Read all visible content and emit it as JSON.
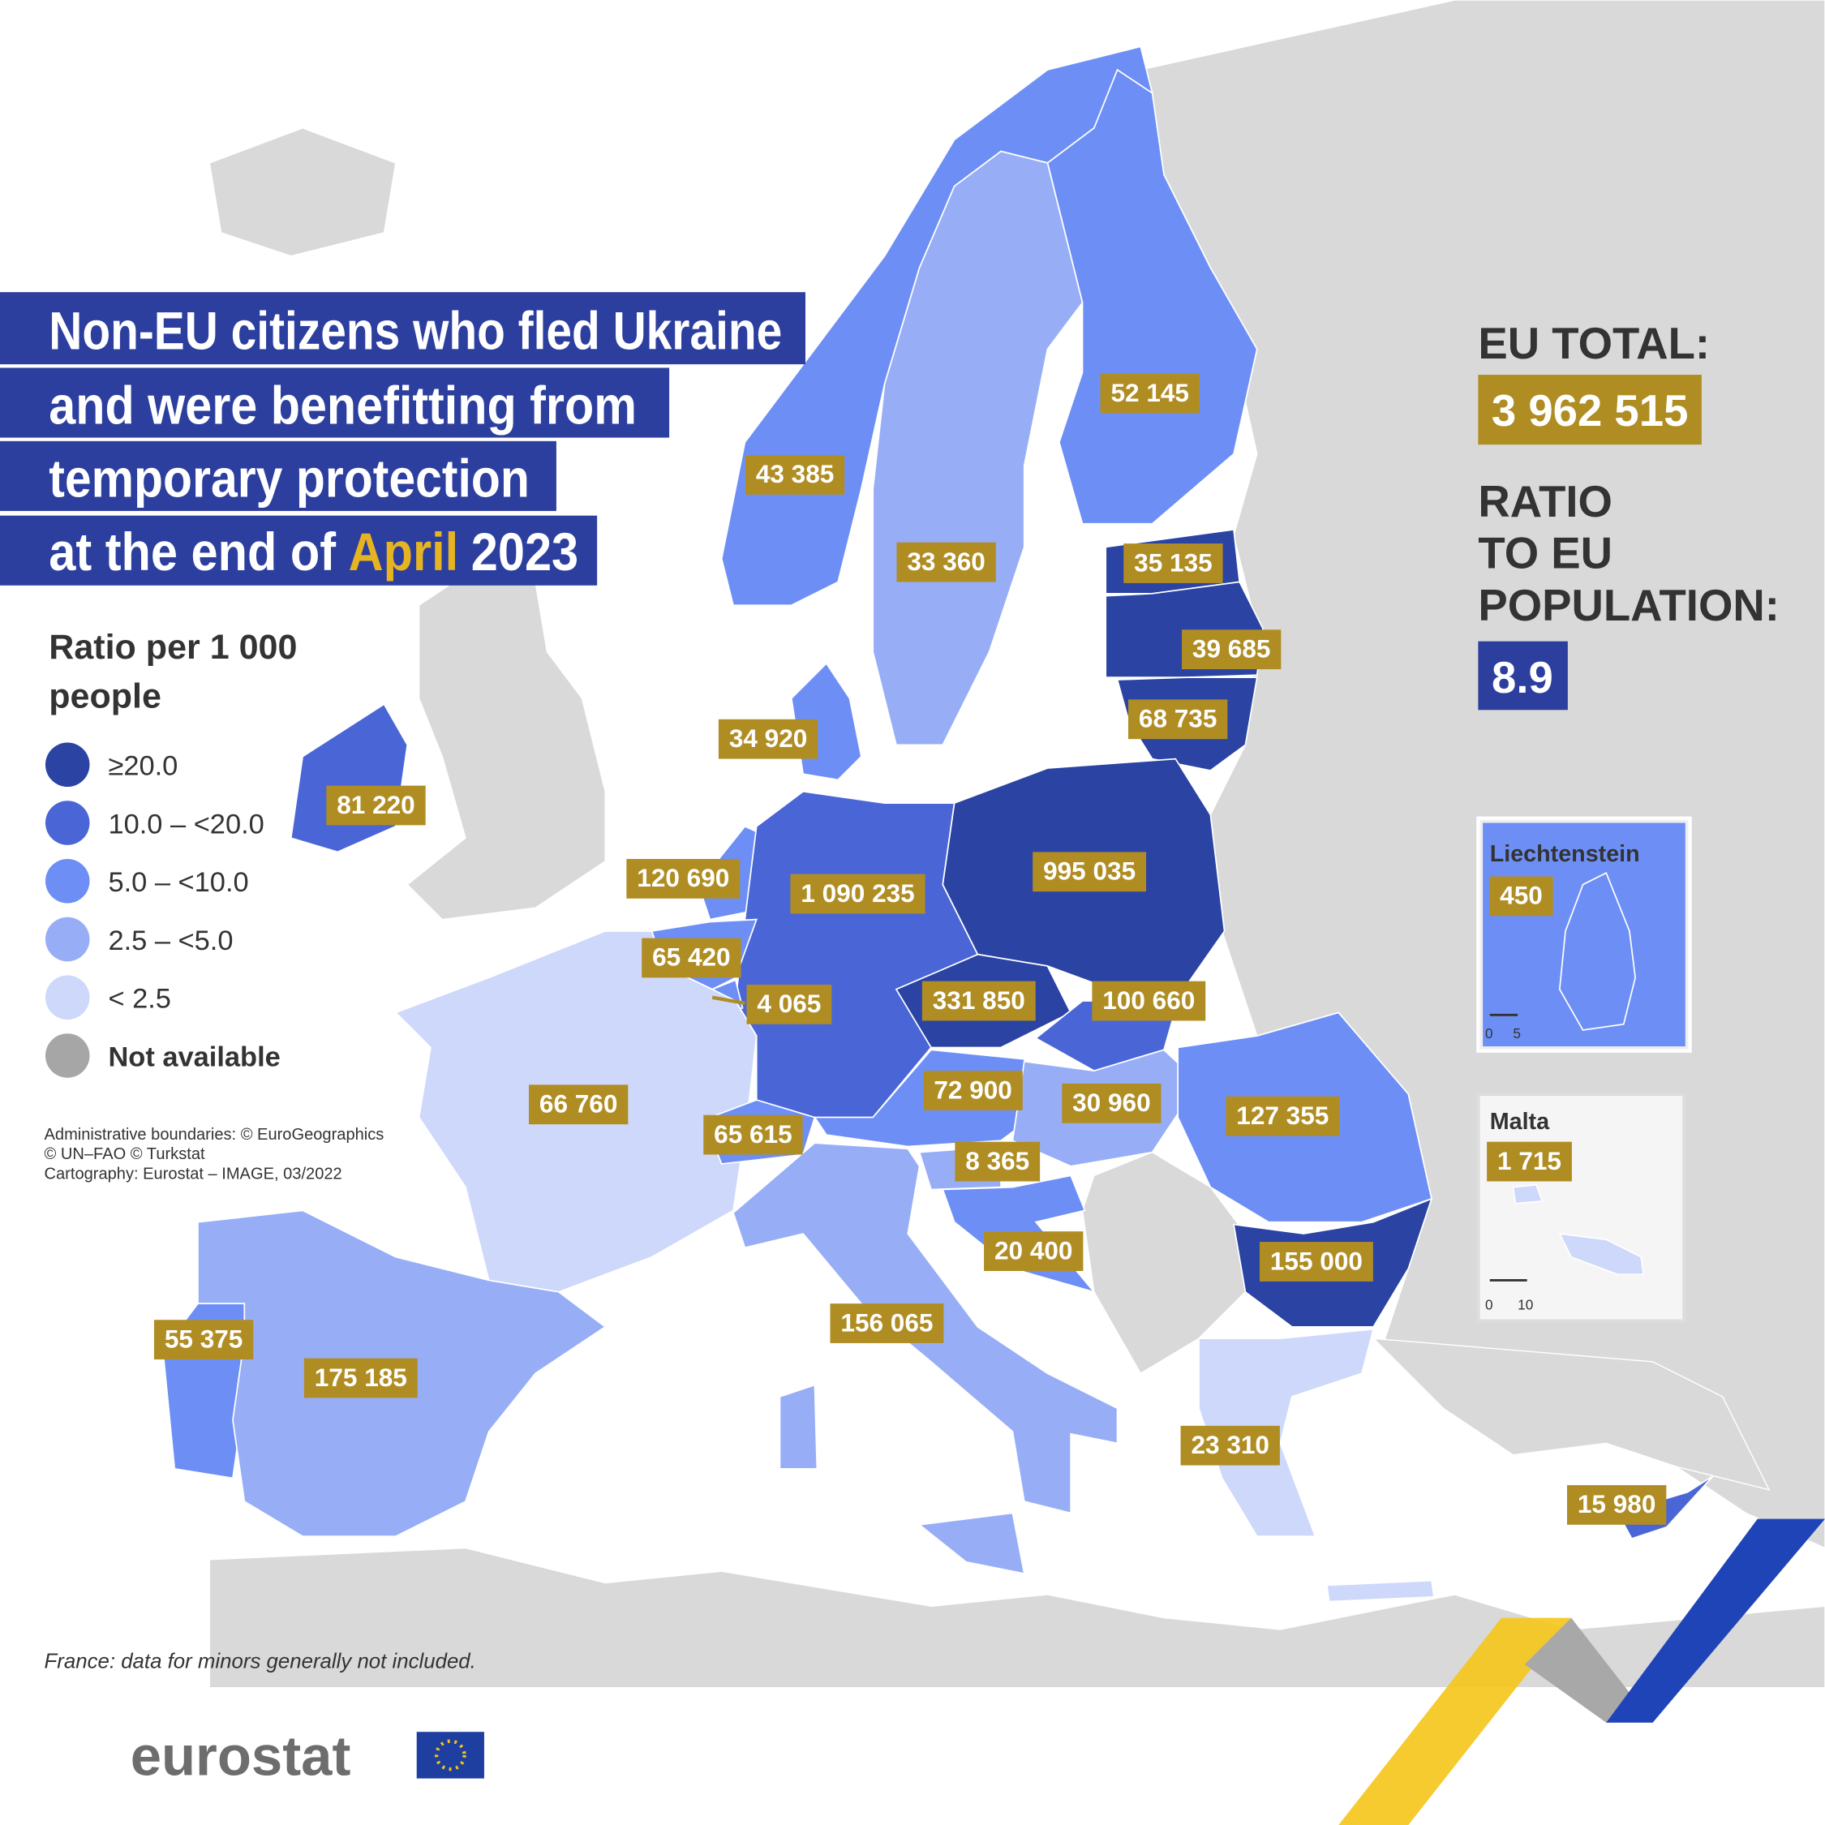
{
  "title": {
    "lines": [
      "Non-EU citizens who fled Ukraine",
      "and were benefitting from",
      "temporary protection"
    ],
    "last_line": {
      "before": "at the end of",
      "highlight": "April",
      "after": "2023"
    }
  },
  "summary": {
    "total_label": "EU TOTAL:",
    "total": "3 962 515",
    "ratio_label": [
      "RATIO",
      "TO EU",
      "POPULATION:"
    ],
    "ratio": "8.9"
  },
  "legend": {
    "title": [
      "Ratio per 1 000",
      "people"
    ],
    "classes": [
      {
        "label": "≥20.0",
        "color": "#2b43a3"
      },
      {
        "label": "10.0 – <20.0",
        "color": "#4a66d6"
      },
      {
        "label": "5.0 – <10.0",
        "color": "#6d8ff5"
      },
      {
        "label": "2.5 – <5.0",
        "color": "#97aef7"
      },
      {
        "label": "< 2.5",
        "color": "#cdd8fb"
      },
      {
        "label": "Not available",
        "color": "#a6a6a6"
      }
    ]
  },
  "regions": [
    {
      "label": "43 385",
      "class": 2
    },
    {
      "label": "52 145",
      "class": 2
    },
    {
      "label": "33 360",
      "class": 3
    },
    {
      "label": "35 135",
      "class": 0
    },
    {
      "label": "39 685",
      "class": 0
    },
    {
      "label": "68 735",
      "class": 0
    },
    {
      "label": "34 920",
      "class": 2
    },
    {
      "label": "81 220",
      "class": 1
    },
    {
      "label": "120 690",
      "class": 2
    },
    {
      "label": "1 090 235",
      "class": 1
    },
    {
      "label": "995 035",
      "class": 0
    },
    {
      "label": "65 420",
      "class": 2
    },
    {
      "label": "4 065",
      "class": 2
    },
    {
      "label": "331 850",
      "class": 0
    },
    {
      "label": "100 660",
      "class": 1
    },
    {
      "label": "72 900",
      "class": 2
    },
    {
      "label": "30 960",
      "class": 3
    },
    {
      "label": "66 760",
      "class": 4
    },
    {
      "label": "65 615",
      "class": 2
    },
    {
      "label": "127 355",
      "class": 2
    },
    {
      "label": "8 365",
      "class": 3
    },
    {
      "label": "20 400",
      "class": 2
    },
    {
      "label": "155 000",
      "class": 0
    },
    {
      "label": "156 065",
      "class": 3
    },
    {
      "label": "55 375",
      "class": 2
    },
    {
      "label": "175 185",
      "class": 3
    },
    {
      "label": "23 310",
      "class": 4
    },
    {
      "label": "15 980",
      "class": 1
    }
  ],
  "insets": [
    {
      "title": "Liechtenstein",
      "label": "450",
      "class": 2,
      "scale": [
        "0",
        "5"
      ]
    },
    {
      "title": "Malta",
      "label": "1 715",
      "class": 4,
      "scale": [
        "0",
        "10"
      ]
    }
  ],
  "credits": [
    "Administrative boundaries: © EuroGeographics",
    "© UN–FAO © Turkstat",
    "Cartography: Eurostat – IMAGE,  03/2022"
  ],
  "note": "France: data for minors generally not included.",
  "logo": "eurostat"
}
